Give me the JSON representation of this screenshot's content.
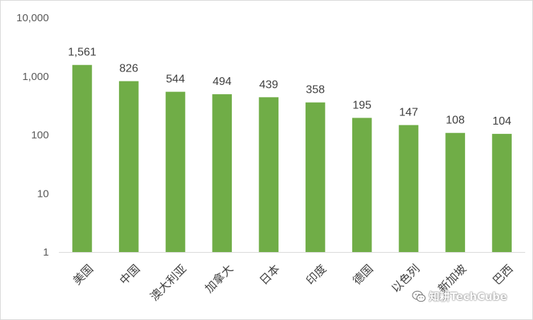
{
  "chart_data": {
    "type": "bar",
    "yscale": "log",
    "ylim": [
      1,
      10000
    ],
    "y_ticks": [
      "1",
      "10",
      "100",
      "1,000",
      "10,000"
    ],
    "categories": [
      "美国",
      "中国",
      "澳大利亚",
      "加拿大",
      "日本",
      "印度",
      "德国",
      "以色列",
      "新加坡",
      "巴西"
    ],
    "values": [
      1561,
      826,
      544,
      494,
      439,
      358,
      195,
      147,
      108,
      104
    ],
    "value_labels": [
      "1,561",
      "826",
      "544",
      "494",
      "439",
      "358",
      "195",
      "147",
      "108",
      "104"
    ],
    "bar_color": "#70ad47",
    "grid": false
  },
  "watermark": {
    "text": "知耕TechCube",
    "icon": "wechat-icon"
  }
}
